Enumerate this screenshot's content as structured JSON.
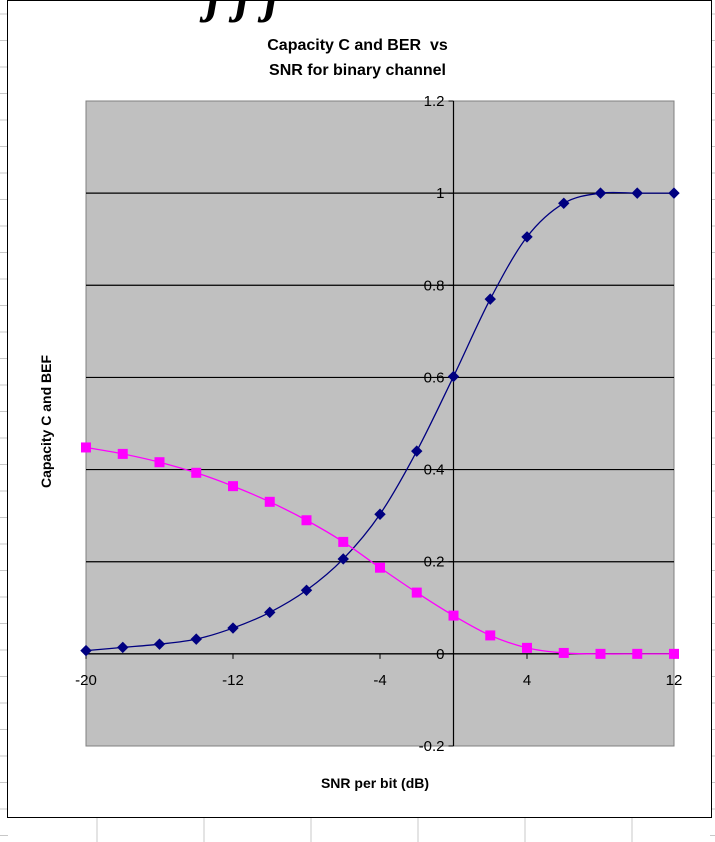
{
  "chart_data": {
    "type": "line",
    "title_lines": [
      "Capacity C and BER  vs",
      "SNR for binary channel"
    ],
    "xlabel": "SNR per bit (dB)",
    "ylabel": "Capacity C and BEF",
    "xlim": [
      -20,
      12
    ],
    "ylim": [
      -0.2,
      1.2
    ],
    "x_ticks": [
      -20,
      -12,
      -4,
      4,
      12
    ],
    "y_ticks": [
      -0.2,
      0,
      0.2,
      0.4,
      0.6,
      0.8,
      1,
      1.2
    ],
    "y_tick_labels": [
      "-0.2",
      "0",
      "0.2",
      "0.4",
      "0.6",
      "0.8",
      "1",
      "1.2"
    ],
    "grid": "horizontal",
    "plot_background": "#c0c0c0",
    "series": [
      {
        "color": "#000080",
        "marker": "diamond",
        "x": [
          -20,
          -18,
          -16,
          -14,
          -12,
          -10,
          -8,
          -6,
          -4,
          -2,
          0,
          2,
          4,
          6,
          8,
          10,
          12
        ],
        "values": [
          0.007,
          0.014,
          0.021,
          0.032,
          0.056,
          0.09,
          0.138,
          0.206,
          0.303,
          0.44,
          0.602,
          0.77,
          0.905,
          0.978,
          1.0,
          1.0,
          1.0
        ]
      },
      {
        "color": "#ff00ff",
        "marker": "square",
        "x": [
          -20,
          -18,
          -16,
          -14,
          -12,
          -10,
          -8,
          -6,
          -4,
          -2,
          0,
          2,
          4,
          6,
          8,
          10,
          12
        ],
        "values": [
          0.448,
          0.434,
          0.416,
          0.393,
          0.364,
          0.33,
          0.29,
          0.243,
          0.187,
          0.133,
          0.083,
          0.04,
          0.013,
          0.002,
          0.0,
          0.0,
          0.0
        ]
      }
    ]
  }
}
